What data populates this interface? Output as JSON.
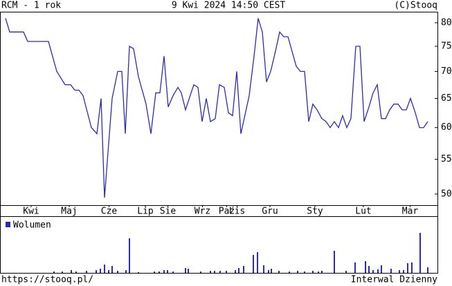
{
  "header": {
    "left": "RCM - 1 rok",
    "center": "9 Kwi 2024 14:50 CEST",
    "right": "(C)Stooq"
  },
  "chart_data": {
    "type": "line",
    "log_y": true,
    "color": "#2b2bb0",
    "xlim": [
      0,
      250
    ],
    "ylim": [
      48.5,
      82.3
    ],
    "yticks": [
      50,
      55,
      60,
      65,
      70,
      75,
      80
    ],
    "xticks": [
      {
        "value": 16,
        "label": "Kwi"
      },
      {
        "value": 38,
        "label": "Maj"
      },
      {
        "value": 61,
        "label": "Cze"
      },
      {
        "value": 82,
        "label": "Lip"
      },
      {
        "value": 95,
        "label": "Sie"
      },
      {
        "value": 115,
        "label": "Wrz"
      },
      {
        "value": 129,
        "label": "Paź"
      },
      {
        "value": 135,
        "label": "Lis"
      },
      {
        "value": 154,
        "label": "Gru"
      },
      {
        "value": 180,
        "label": "Sty"
      },
      {
        "value": 208,
        "label": "Lut"
      },
      {
        "value": 235,
        "label": "Mar"
      }
    ],
    "x": [
      1.2,
      3.6,
      11.6,
      14,
      26,
      30.8,
      35.6,
      38.8,
      41.2,
      43.6,
      46,
      50.8,
      54,
      56.4,
      58.4,
      62.8,
      66,
      68.4,
      70.4,
      72.8,
      75.2,
      78,
      82.4,
      85.2,
      88,
      90.4,
      92.8,
      95.2,
      98,
      100.8,
      102.8,
      105.2,
      110,
      112.4,
      114.8,
      117.2,
      119.6,
      122.4,
      124.8,
      127.6,
      130,
      132.4,
      134.8,
      137.2,
      142,
      144.8,
      147.2,
      149.6,
      152,
      154.4,
      157.2,
      159.6,
      162,
      164.4,
      169.2,
      171.6,
      174,
      176.4,
      178.8,
      181.2,
      184,
      186.4,
      188.8,
      191.2,
      193.6,
      196,
      198.4,
      200.8,
      203.6,
      206,
      208.4,
      211.2,
      213.6,
      216,
      218.4,
      220.8,
      223.2,
      225.6,
      228,
      230.4,
      232.8,
      235.2,
      238,
      240.4,
      242.8,
      245.2
    ],
    "values": [
      81,
      78,
      78,
      76,
      76,
      70,
      67.5,
      67.5,
      66.5,
      66.5,
      65.5,
      60,
      59,
      65,
      49.5,
      65,
      70,
      70,
      59,
      75,
      74.5,
      69,
      64,
      59,
      66,
      66,
      73,
      63.5,
      65.5,
      67,
      66,
      63,
      67.5,
      67,
      61,
      65,
      61,
      61.5,
      67.5,
      67,
      62.5,
      62,
      70,
      59,
      65.5,
      73,
      81,
      78,
      68,
      70,
      74,
      78,
      77,
      77,
      71,
      70,
      70,
      61,
      64,
      63,
      61.5,
      61,
      60,
      61,
      60,
      62,
      60,
      61.5,
      75,
      75,
      61,
      63.5,
      66,
      67.5,
      61.5,
      61.5,
      63,
      64,
      64,
      63,
      63,
      65,
      62.5,
      60,
      60,
      61
    ],
    "volume": {
      "name": "Wolumen",
      "color": "#2b2bb0",
      "ylim": [
        0,
        80
      ],
      "x": [
        29.2,
        34,
        39.2,
        42,
        48,
        53.6,
        56,
        58.4,
        60.8,
        62.8,
        66,
        70.8,
        72.8,
        78,
        87.2,
        90,
        92.8,
        94.8,
        98,
        105.2,
        106.8,
        114,
        119.6,
        122,
        125.2,
        128.8,
        134,
        136,
        138.8,
        144.4,
        146.8,
        150.4,
        153.2,
        154.8,
        159.2,
        165.2,
        170,
        174,
        178.8,
        182,
        184,
        191.2,
        198,
        203.2,
        209.2,
        211.2,
        213.6,
        216.4,
        218.4,
        224,
        228.8,
        231.2,
        233.6,
        236,
        240.8,
        245.2
      ],
      "values": [
        2,
        2,
        4,
        2,
        3,
        4,
        6,
        12,
        4,
        10,
        3,
        4,
        50,
        1,
        2,
        2,
        4,
        4,
        2,
        7,
        6,
        2,
        3,
        3,
        3,
        3,
        4,
        7,
        10,
        26,
        30,
        11,
        4,
        6,
        3,
        2,
        3,
        2,
        3,
        2,
        3,
        32,
        3,
        15,
        17,
        10,
        4,
        5,
        11,
        6,
        4,
        4,
        14,
        15,
        58,
        8
      ]
    }
  },
  "footer": {
    "left": "https://stooq.pl/",
    "right": "Interwal Dzienny"
  }
}
